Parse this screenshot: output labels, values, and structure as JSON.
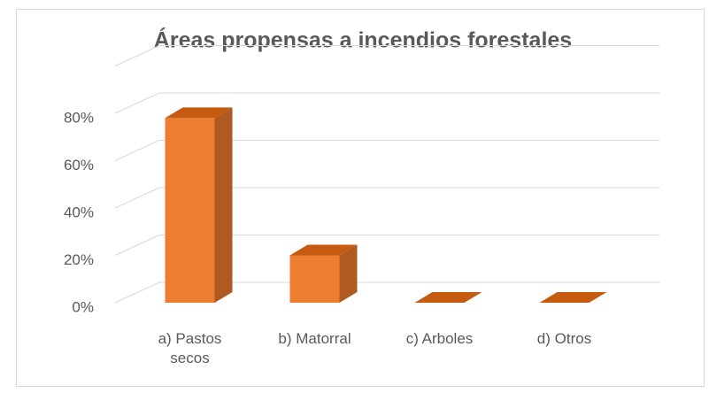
{
  "chart_data": {
    "type": "bar3d",
    "title": "Áreas propensas a incendios forestales",
    "categories": [
      "a) Pastos secos",
      "b) Matorral",
      "c) Arboles",
      "d) Otros"
    ],
    "values": [
      78,
      20,
      0,
      0
    ],
    "color": "#ed7d31",
    "ylim": [
      0,
      100
    ],
    "yticks": [
      {
        "value": 0,
        "label": "0%"
      },
      {
        "value": 20,
        "label": "20%"
      },
      {
        "value": 40,
        "label": "40%"
      },
      {
        "value": 60,
        "label": "60%"
      },
      {
        "value": 80,
        "label": "80%"
      }
    ],
    "grid": true
  }
}
